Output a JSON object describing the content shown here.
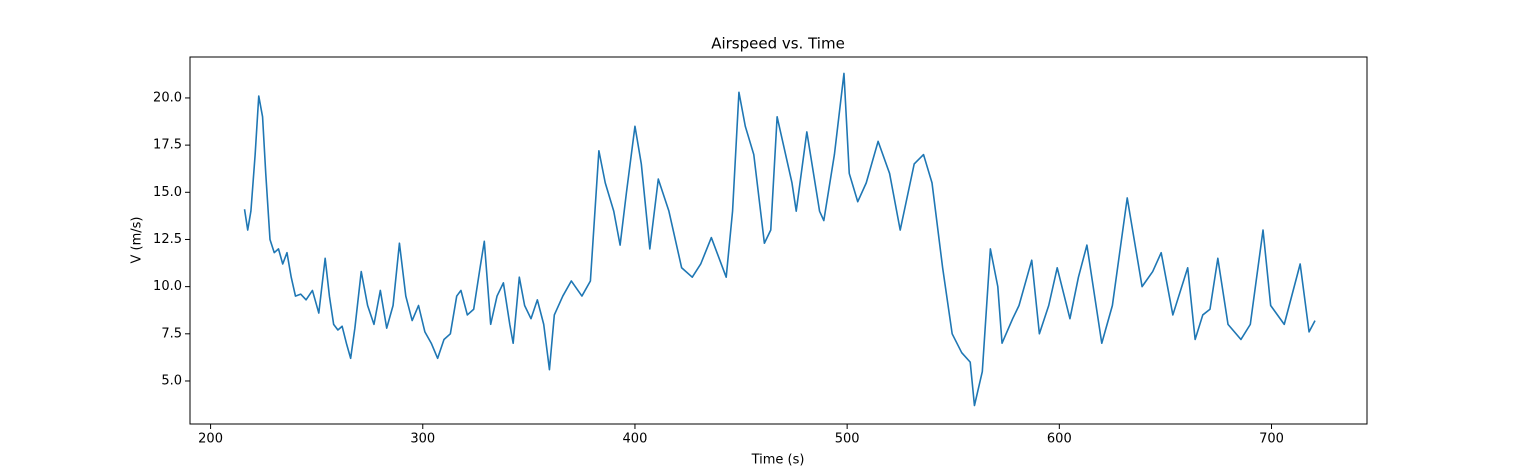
{
  "chart_data": {
    "type": "line",
    "title": "Airspeed vs. Time",
    "x_label": "Time (s)",
    "y_label": "V (m/s)",
    "x": [
      216,
      217.5,
      219,
      221,
      222.7,
      224.5,
      226,
      228,
      230,
      232,
      234,
      236,
      238,
      240,
      242.5,
      245,
      248,
      251,
      254,
      256,
      258,
      260,
      262,
      264,
      266,
      268,
      271,
      274,
      277,
      280,
      283,
      286,
      289,
      292,
      295,
      298,
      301,
      304,
      307,
      310,
      313,
      316,
      318,
      321,
      324,
      327,
      329,
      332,
      335,
      338,
      341,
      342.6,
      345.5,
      348,
      351,
      354,
      357,
      359.7,
      362,
      366,
      370,
      375,
      379,
      383,
      386,
      390,
      393,
      396,
      400,
      403,
      407,
      411,
      416,
      422,
      427,
      431,
      436,
      443,
      446,
      449,
      452,
      456,
      461,
      464,
      467,
      471,
      474,
      476,
      481,
      487,
      489,
      494,
      498.5,
      501,
      505,
      509,
      514.6,
      520,
      525,
      531.6,
      536,
      540,
      545,
      549.5,
      554,
      558,
      560,
      563.7,
      567.5,
      571,
      573,
      578,
      581,
      587,
      590.6,
      595,
      599,
      605,
      609,
      613,
      620,
      625,
      632,
      639,
      644,
      648,
      653.5,
      660.5,
      664,
      667.6,
      671,
      674.7,
      679.5,
      685.6,
      690,
      696,
      699.6,
      706,
      713.5,
      717.7,
      720.5
    ],
    "series": [
      {
        "name": "V",
        "color": "#1f77b4",
        "values": [
          14.1,
          13.0,
          14.0,
          17.0,
          20.1,
          19.0,
          16.0,
          12.5,
          11.8,
          12.0,
          11.2,
          11.8,
          10.5,
          9.5,
          9.6,
          9.3,
          9.8,
          8.6,
          11.5,
          9.5,
          8.0,
          7.7,
          7.9,
          7.0,
          6.2,
          7.8,
          10.8,
          9.0,
          8.0,
          9.8,
          7.8,
          9.0,
          12.3,
          9.5,
          8.2,
          9.0,
          7.6,
          7.0,
          6.2,
          7.2,
          7.5,
          9.5,
          9.8,
          8.5,
          8.8,
          11.0,
          12.4,
          8.0,
          9.5,
          10.2,
          8.0,
          7.0,
          10.5,
          9.0,
          8.3,
          9.3,
          8.0,
          5.6,
          8.5,
          9.5,
          10.3,
          9.5,
          10.3,
          17.2,
          15.5,
          14.0,
          12.2,
          15.0,
          18.5,
          16.5,
          12.0,
          15.7,
          14.0,
          11.0,
          10.5,
          11.2,
          12.6,
          10.5,
          14.0,
          20.3,
          18.5,
          17.0,
          12.3,
          13.0,
          19.0,
          17.0,
          15.5,
          14.0,
          18.2,
          14.0,
          13.5,
          17.0,
          21.3,
          16.0,
          14.5,
          15.5,
          17.7,
          16.0,
          13.0,
          16.5,
          17.0,
          15.5,
          11.0,
          7.5,
          6.5,
          6.0,
          3.7,
          5.5,
          12.0,
          10.0,
          7.0,
          8.3,
          9.0,
          11.4,
          7.5,
          9.0,
          11.0,
          8.3,
          10.5,
          12.2,
          7.0,
          9.0,
          14.7,
          10.0,
          10.8,
          11.8,
          8.5,
          11.0,
          7.2,
          8.5,
          8.8,
          11.5,
          8.0,
          7.2,
          8.0,
          13.0,
          9.0,
          8.0,
          11.2,
          7.6,
          8.2
        ]
      }
    ],
    "xlim": [
      190.3,
      745
    ],
    "xticks": [
      200,
      300,
      400,
      500,
      600,
      700
    ],
    "ylim": [
      2.72,
      22.17
    ],
    "yticks": [
      {
        "value": 5.0,
        "label": "5.0"
      },
      {
        "value": 7.5,
        "label": "7.5"
      },
      {
        "value": 10.0,
        "label": "10.0"
      },
      {
        "value": 12.5,
        "label": "12.5"
      },
      {
        "value": 15.0,
        "label": "15.0"
      },
      {
        "value": 17.5,
        "label": "17.5"
      },
      {
        "value": 20.0,
        "label": "20.0"
      }
    ],
    "grid": false
  }
}
